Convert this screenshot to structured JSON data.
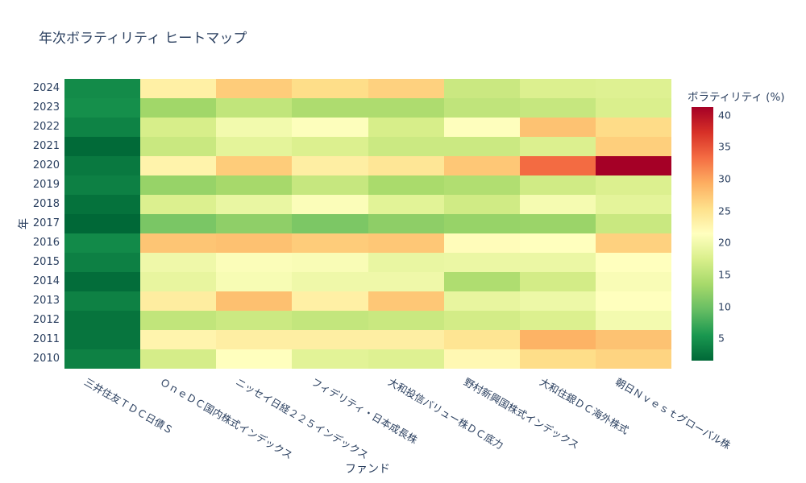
{
  "colors": {
    "background": "#ffffff",
    "text": "#2a3f5f"
  },
  "chart_data": {
    "type": "heatmap",
    "title": "年次ボラティリティ ヒートマップ",
    "xlabel": "ファンド",
    "ylabel": "年",
    "colorbar_title": "ボラティリティ (%)",
    "colorbar_ticks": [
      40,
      35,
      30,
      25,
      20,
      15,
      10,
      5
    ],
    "zmin": 1.5,
    "zmax": 41.2,
    "legend_position": "right-colorbar",
    "grid": false,
    "colorscale_name": "RdYlGn reversed (green=low, red=high)",
    "colorscale": [
      [
        0.0,
        "#006837"
      ],
      [
        0.1,
        "#1a9850"
      ],
      [
        0.2,
        "#66bd63"
      ],
      [
        0.3,
        "#a6d96a"
      ],
      [
        0.4,
        "#d9ef8b"
      ],
      [
        0.5,
        "#ffffbf"
      ],
      [
        0.6,
        "#fee08b"
      ],
      [
        0.7,
        "#fdae61"
      ],
      [
        0.8,
        "#f46d43"
      ],
      [
        0.9,
        "#d73027"
      ],
      [
        1.0,
        "#a50026"
      ]
    ],
    "x_categories": [
      "三井住友ＴＤＣ日債Ｓ",
      "ＯｎｅＤＣ国内株式インデックス",
      "ニッセイ日経２２５インデックス",
      "フィデリティ・日本成長株",
      "大和投信バリュー株ＤＣ底力",
      "野村新興国株式インデックス",
      "大和住銀ＤＣ海外株式",
      "朝日Ｎｖｅｓｔグローバル株"
    ],
    "y_categories": [
      "2024",
      "2023",
      "2022",
      "2021",
      "2020",
      "2019",
      "2018",
      "2017",
      "2016",
      "2015",
      "2014",
      "2013",
      "2012",
      "2011",
      "2010"
    ],
    "values": [
      [
        4.4,
        23.3,
        26.9,
        25.5,
        26.5,
        16.2,
        17.7,
        17.9
      ],
      [
        4.7,
        13.1,
        15.5,
        14.0,
        14.0,
        15.4,
        15.9,
        17.5
      ],
      [
        3.7,
        17.2,
        20.0,
        21.1,
        17.2,
        21.2,
        27.7,
        25.6
      ],
      [
        1.7,
        16.1,
        18.5,
        17.7,
        16.3,
        16.3,
        17.7,
        26.7
      ],
      [
        2.9,
        22.9,
        26.9,
        23.5,
        24.5,
        27.3,
        33.4,
        41.2
      ],
      [
        3.5,
        12.5,
        13.5,
        15.9,
        13.7,
        14.3,
        16.7,
        17.7
      ],
      [
        2.3,
        17.7,
        19.1,
        20.9,
        18.3,
        16.7,
        20.3,
        18.5
      ],
      [
        1.5,
        10.7,
        12.0,
        10.8,
        11.9,
        12.5,
        12.7,
        16.1
      ],
      [
        4.3,
        27.5,
        27.8,
        26.9,
        27.3,
        21.7,
        21.3,
        26.5
      ],
      [
        3.5,
        19.7,
        20.9,
        20.7,
        19.1,
        19.3,
        19.3,
        21.3
      ],
      [
        1.9,
        18.9,
        20.5,
        19.7,
        19.7,
        14.1,
        16.9,
        20.7
      ],
      [
        3.6,
        23.7,
        27.9,
        23.3,
        27.3,
        18.9,
        19.5,
        21.3
      ],
      [
        2.5,
        15.5,
        16.3,
        15.7,
        16.1,
        16.9,
        17.7,
        20.1
      ],
      [
        2.6,
        22.7,
        23.5,
        23.5,
        23.5,
        24.7,
        28.9,
        27.7
      ],
      [
        3.6,
        17.1,
        21.3,
        18.3,
        17.9,
        22.3,
        25.5,
        26.3
      ]
    ]
  }
}
